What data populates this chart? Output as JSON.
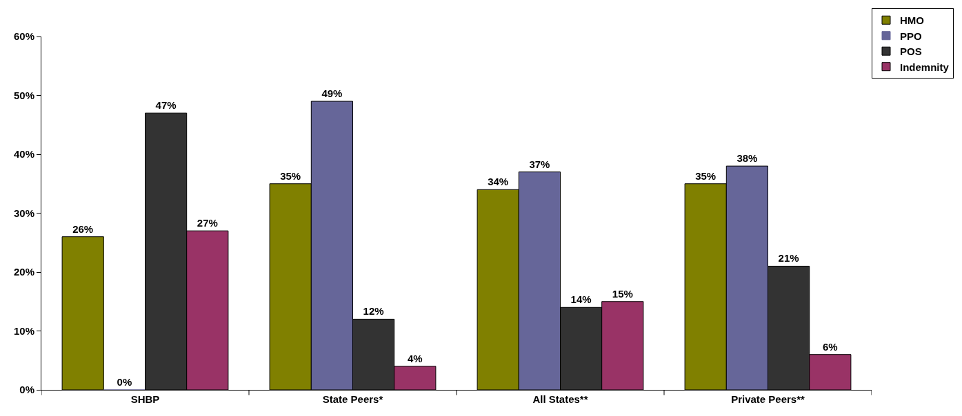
{
  "chart_data": {
    "type": "bar",
    "categories": [
      "SHBP",
      "State Peers*",
      "All States**",
      "Private Peers**"
    ],
    "series": [
      {
        "name": "HMO",
        "color": "#808000",
        "values": [
          26,
          35,
          34,
          35
        ],
        "value_labels": [
          "26%",
          "35%",
          "34%",
          "35%"
        ]
      },
      {
        "name": "PPO",
        "color": "#666699",
        "values": [
          0,
          49,
          37,
          38
        ],
        "value_labels": [
          "0%",
          "49%",
          "37%",
          "38%"
        ]
      },
      {
        "name": "POS",
        "color": "#333333",
        "values": [
          47,
          12,
          14,
          21
        ],
        "value_labels": [
          "47%",
          "12%",
          "14%",
          "21%"
        ]
      },
      {
        "name": "Indemnity",
        "color": "#993366",
        "values": [
          27,
          4,
          15,
          6
        ],
        "value_labels": [
          "27%",
          "4%",
          "15%",
          "6%"
        ]
      }
    ],
    "ylim": [
      0,
      60
    ],
    "yticks": [
      {
        "value": 0,
        "label": "0%"
      },
      {
        "value": 10,
        "label": "10%"
      },
      {
        "value": 20,
        "label": "20%"
      },
      {
        "value": 30,
        "label": "30%"
      },
      {
        "value": 40,
        "label": "40%"
      },
      {
        "value": 50,
        "label": "50%"
      },
      {
        "value": 60,
        "label": "60%"
      }
    ],
    "grid": false,
    "legend": "top right"
  }
}
